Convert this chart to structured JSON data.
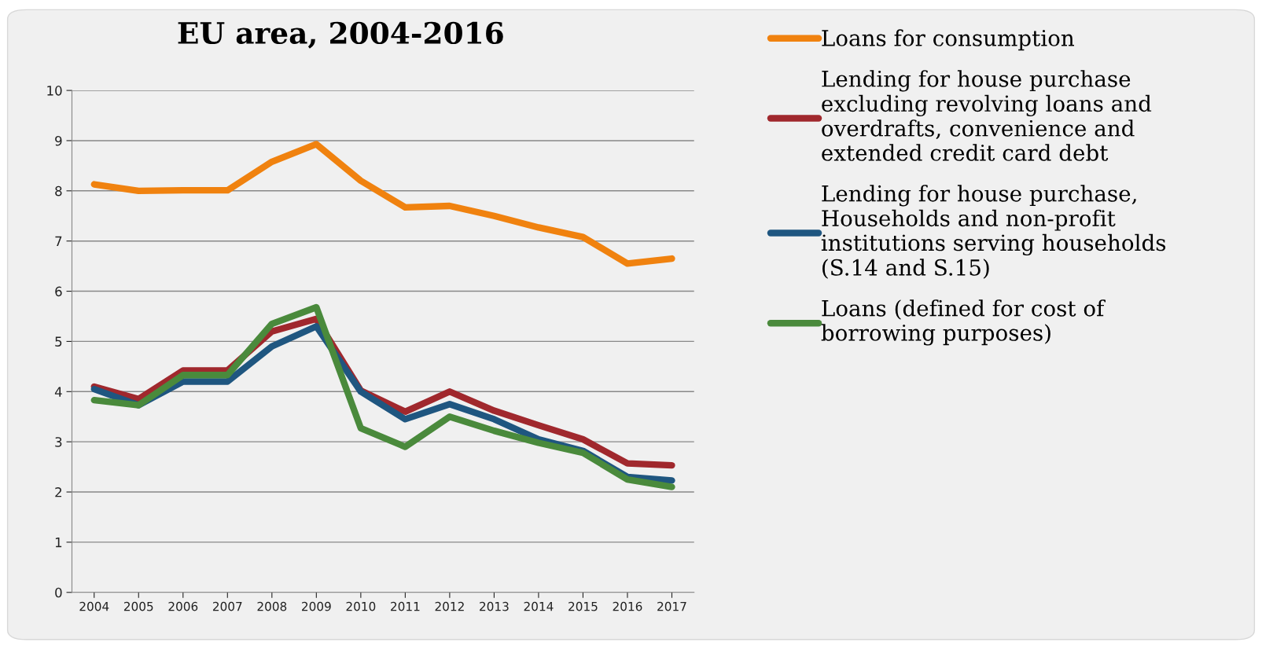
{
  "chart_data": {
    "type": "line",
    "title": "EU area, 2004-2016",
    "categories": [
      "2004",
      "2005",
      "2006",
      "2007",
      "2008",
      "2009",
      "2010",
      "2011",
      "2012",
      "2013",
      "2014",
      "2015",
      "2016",
      "2017"
    ],
    "series": [
      {
        "name": "Loans for consumption",
        "color": "#f0820f",
        "values": [
          8.13,
          8.0,
          8.01,
          8.01,
          8.58,
          8.93,
          8.2,
          7.67,
          7.7,
          7.5,
          7.27,
          7.08,
          6.55,
          6.65
        ]
      },
      {
        "name": "Lending for house purchase\nexcluding revolving loans and\noverdrafts, convenience and\nextended credit card debt",
        "color": "#a0282d",
        "values": [
          4.1,
          3.85,
          4.42,
          4.42,
          5.2,
          5.45,
          4.02,
          3.6,
          4.0,
          3.62,
          3.33,
          3.05,
          2.57,
          2.53
        ]
      },
      {
        "name": "Lending for house purchase,\nHouseholds and non-profit\ninstitutions serving households\n(S.14 and S.15)",
        "color": "#1f5680",
        "values": [
          4.05,
          3.73,
          4.2,
          4.2,
          4.9,
          5.3,
          4.0,
          3.45,
          3.75,
          3.45,
          3.05,
          2.82,
          2.3,
          2.23
        ]
      },
      {
        "name": "Loans (defined for cost of\nborrowing purposes)",
        "color": "#4a8a3c",
        "values": [
          3.83,
          3.73,
          4.33,
          4.33,
          5.35,
          5.68,
          3.27,
          2.9,
          3.5,
          3.22,
          2.98,
          2.78,
          2.25,
          2.1
        ]
      }
    ],
    "ylim": [
      0,
      10
    ],
    "yticks": [
      0,
      1,
      2,
      3,
      4,
      5,
      6,
      7,
      8,
      9,
      10
    ],
    "grid": "y",
    "legend": "right",
    "marker": "none",
    "line_style": "solid"
  }
}
